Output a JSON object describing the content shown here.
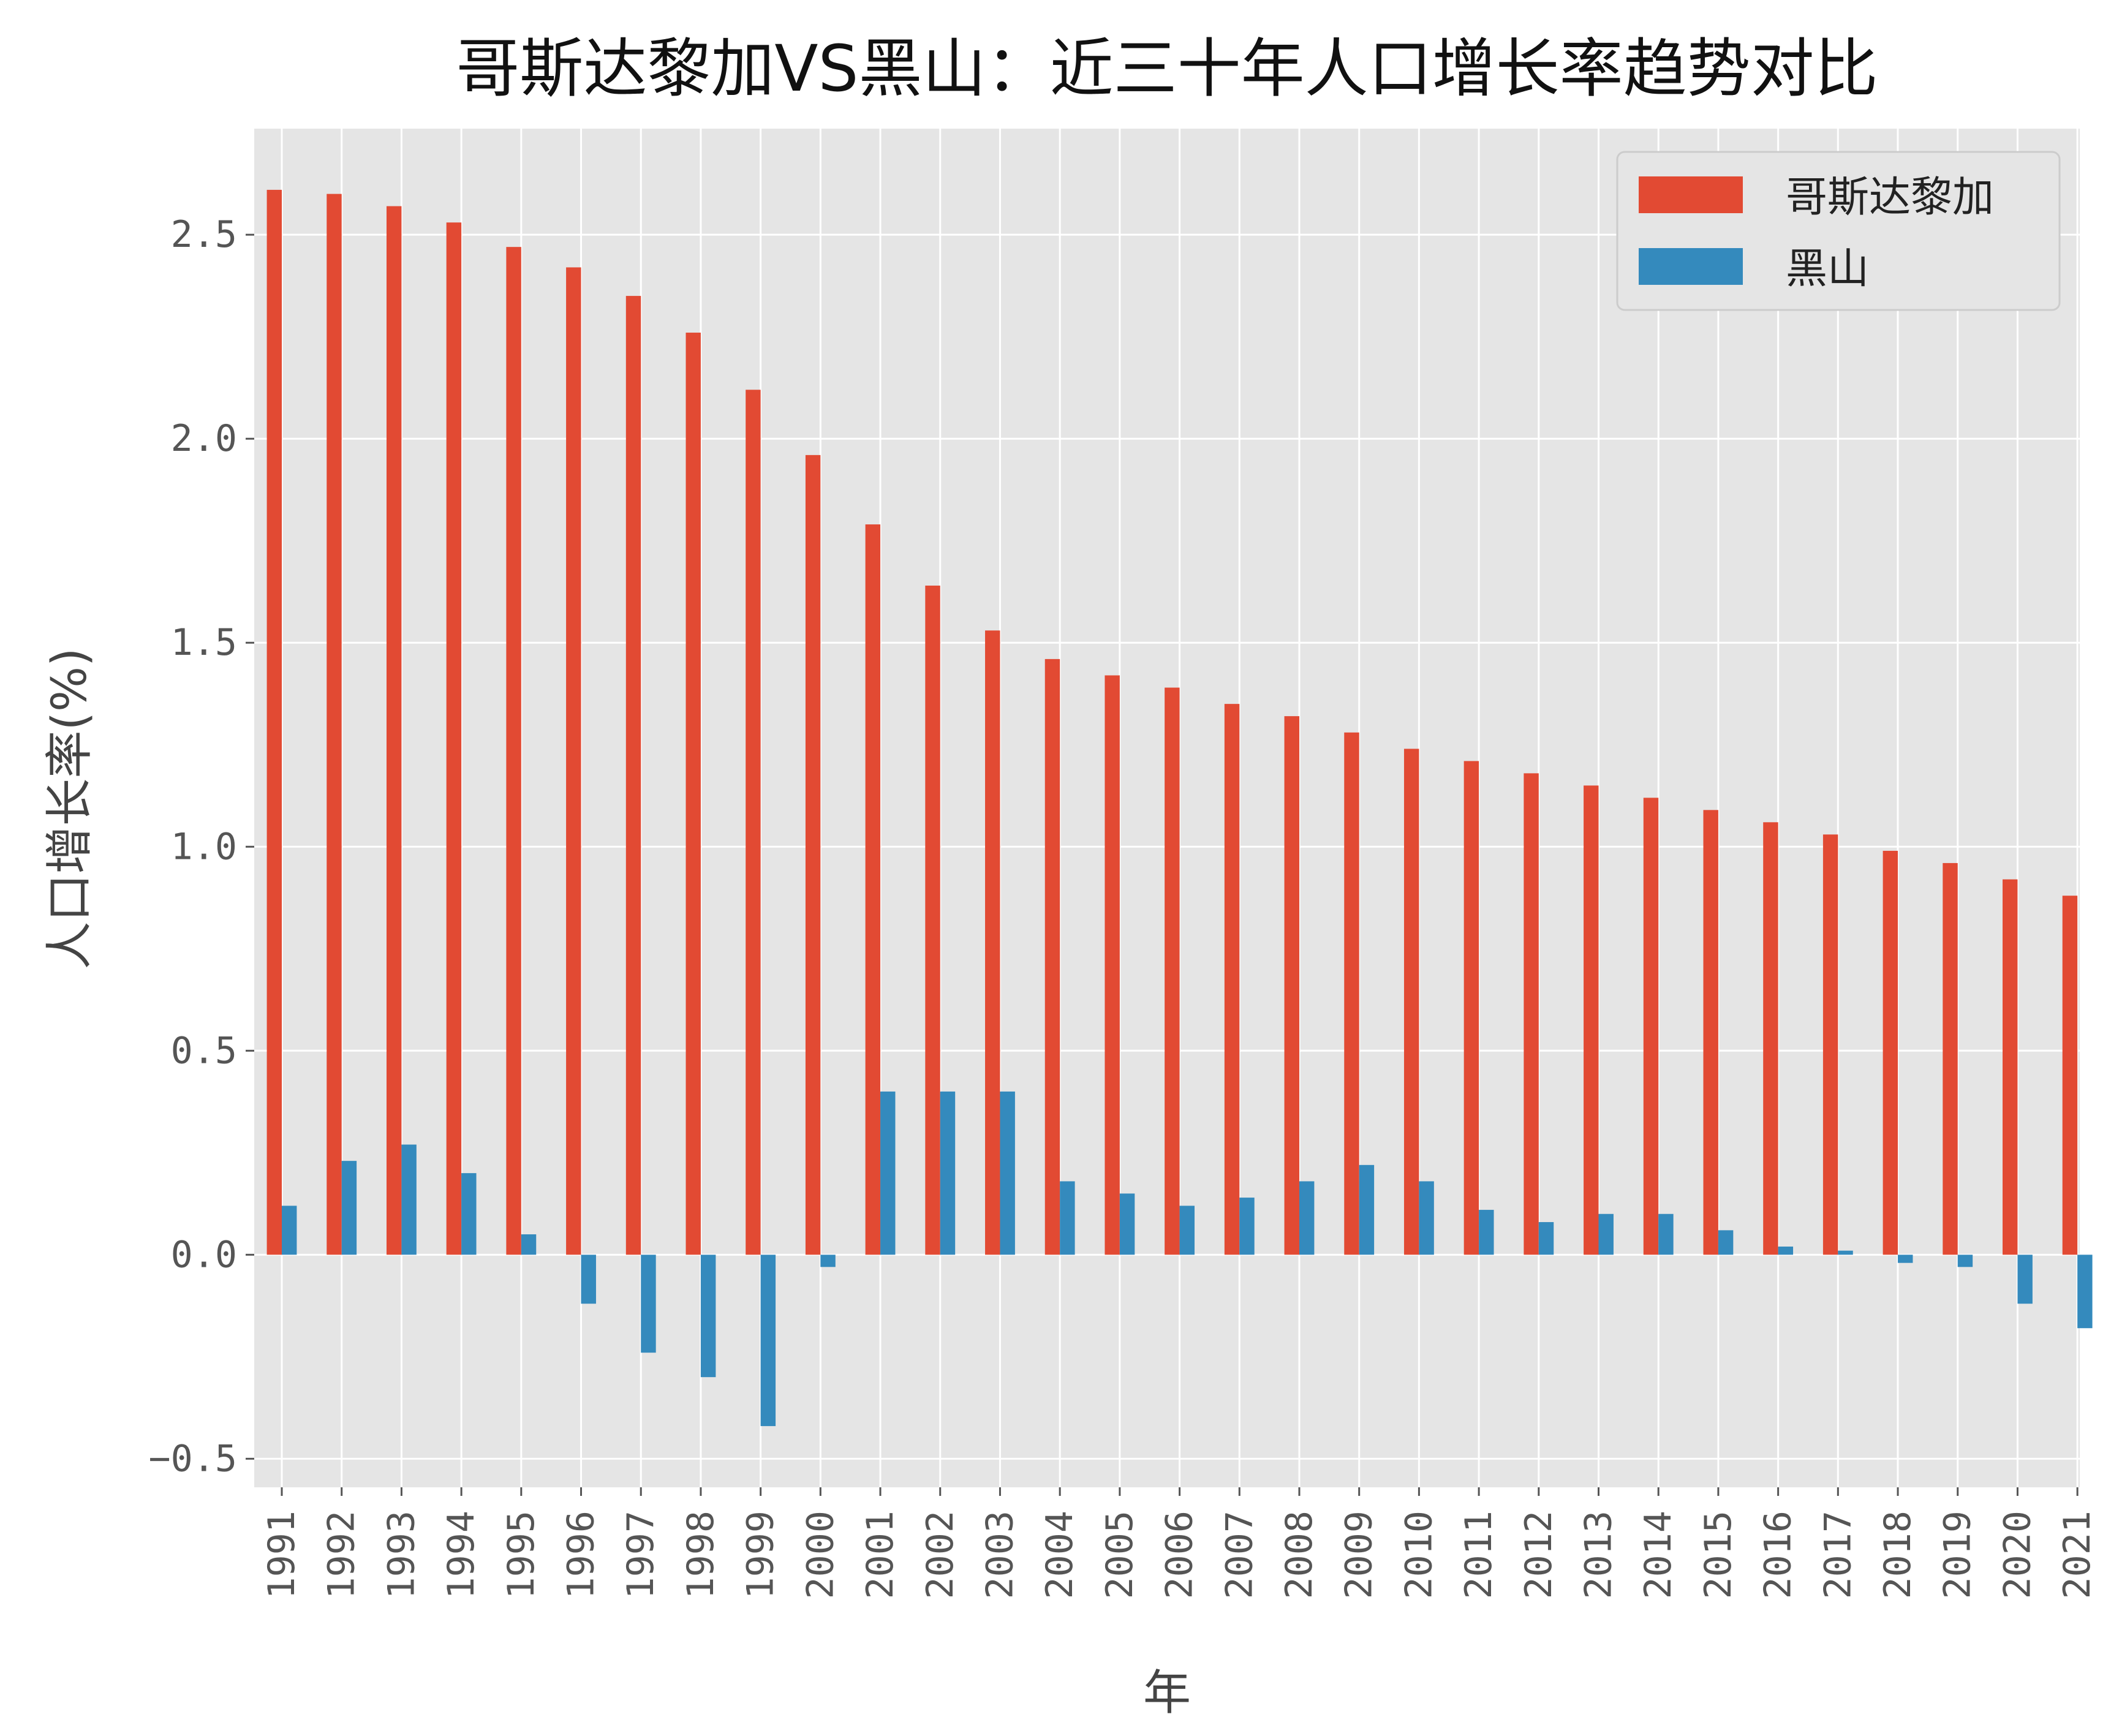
{
  "chart_data": {
    "type": "bar",
    "title": "哥斯达黎加VS黑山：近三十年人口增长率趋势对比",
    "xlabel": "年",
    "ylabel": "人口增长率(%)",
    "ylim": [
      -0.57,
      2.76
    ],
    "yticks": [
      -0.5,
      0.0,
      0.5,
      1.0,
      1.5,
      2.0,
      2.5
    ],
    "ytick_labels": [
      "−0.5",
      "0.0",
      "0.5",
      "1.0",
      "1.5",
      "2.0",
      "2.5"
    ],
    "grid": true,
    "legend_position": "top-right",
    "categories": [
      "1991",
      "1992",
      "1993",
      "1994",
      "1995",
      "1996",
      "1997",
      "1998",
      "1999",
      "2000",
      "2001",
      "2002",
      "2003",
      "2004",
      "2005",
      "2006",
      "2007",
      "2008",
      "2009",
      "2010",
      "2011",
      "2012",
      "2013",
      "2014",
      "2015",
      "2016",
      "2017",
      "2018",
      "2019",
      "2020",
      "2021"
    ],
    "series": [
      {
        "name": "哥斯达黎加",
        "color": "#E24A33",
        "values": [
          2.61,
          2.6,
          2.57,
          2.53,
          2.47,
          2.42,
          2.35,
          2.26,
          2.12,
          1.96,
          1.79,
          1.64,
          1.53,
          1.46,
          1.42,
          1.39,
          1.35,
          1.32,
          1.28,
          1.24,
          1.21,
          1.18,
          1.15,
          1.12,
          1.09,
          1.06,
          1.03,
          0.99,
          0.96,
          0.92,
          0.88
        ]
      },
      {
        "name": "黑山",
        "color": "#348ABD",
        "values": [
          0.12,
          0.23,
          0.27,
          0.2,
          0.05,
          -0.12,
          -0.24,
          -0.3,
          -0.42,
          -0.03,
          0.4,
          0.4,
          0.4,
          0.18,
          0.15,
          0.12,
          0.14,
          0.18,
          0.22,
          0.18,
          0.11,
          0.08,
          0.1,
          0.1,
          0.06,
          0.02,
          0.01,
          -0.02,
          -0.03,
          -0.12,
          -0.18
        ]
      }
    ]
  }
}
